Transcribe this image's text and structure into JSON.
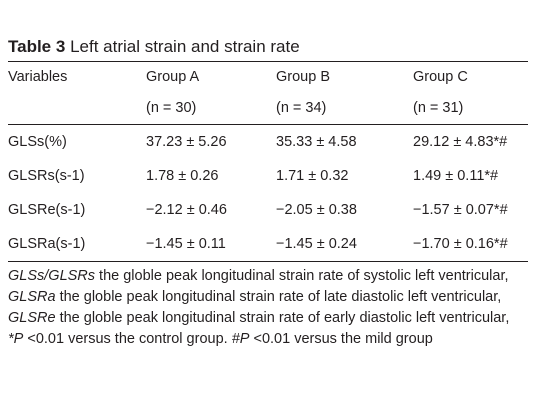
{
  "table": {
    "label": "Table 3",
    "caption": "Left atrial strain and strain rate",
    "columns": [
      "Variables",
      "Group A",
      "Group B",
      "Group C"
    ],
    "n_row": [
      "",
      "(n = 30)",
      "(n = 34)",
      "(n = 31)"
    ],
    "rows": [
      [
        "GLSs(%)",
        "37.23 ± 5.26",
        "35.33 ± 4.58",
        "29.12 ± 4.83*#"
      ],
      [
        "GLSRs(s-1)",
        "1.78 ± 0.26",
        "1.71 ± 0.32",
        "1.49 ± 0.11*#"
      ],
      [
        "GLSRe(s-1)",
        "−2.12 ± 0.46",
        "−2.05 ± 0.38",
        "−1.57 ± 0.07*#"
      ],
      [
        "GLSRa(s-1)",
        "−1.45 ± 0.11",
        "−1.45 ± 0.24",
        "−1.70 ± 0.16*#"
      ]
    ]
  },
  "footnote": {
    "line1_term": "GLSs/GLSRs",
    "line1_text": " the globle peak longitudinal strain rate of systolic left ventricular,",
    "line2_term": "GLSRa",
    "line2_text": " the globle peak longitudinal strain rate of late diastolic left ventricular,",
    "line3_term": "GLSRe",
    "line3_text": " the globle peak longitudinal strain rate of early diastolic left ventricular,",
    "line4_mark1": "*P",
    "line4_text1": " <0.01 versus the control group. ",
    "line4_mark2": "#P",
    "line4_text2": " <0.01 versus the mild group"
  }
}
